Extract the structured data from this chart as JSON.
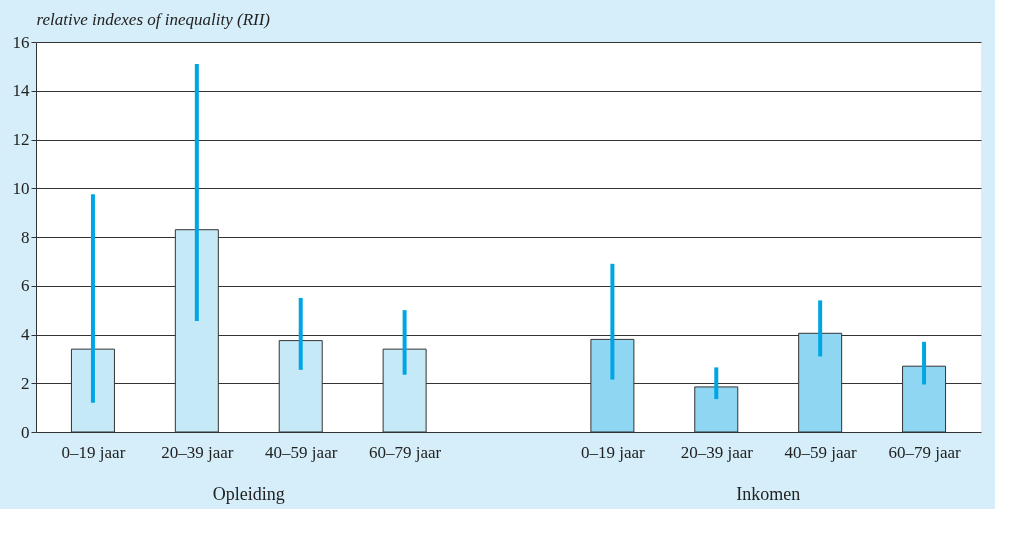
{
  "chart_data": {
    "type": "bar",
    "ylabel": "relative indexes of inequality (RII)",
    "categories": [
      "0–19 jaar",
      "20–39 jaar",
      "40–59 jaar",
      "60–79 jaar",
      null,
      "0–19 jaar",
      "20–39 jaar",
      "40–59 jaar",
      "60–79 jaar"
    ],
    "values": [
      3.4,
      8.3,
      3.75,
      3.4,
      null,
      3.8,
      1.85,
      4.05,
      2.7
    ],
    "colors": [
      "#c6e9f7",
      "#c6e9f7",
      "#c6e9f7",
      "#c6e9f7",
      null,
      "#8fd6f3",
      "#8fd6f3",
      "#8fd6f3",
      "#8fd6f3"
    ],
    "errors": [
      [
        1.2,
        9.75
      ],
      [
        4.55,
        15.1
      ],
      [
        2.55,
        5.5
      ],
      [
        2.35,
        5.0
      ],
      null,
      [
        2.15,
        6.9
      ],
      [
        1.35,
        2.65
      ],
      [
        3.1,
        5.4
      ],
      [
        1.95,
        3.7
      ]
    ],
    "ylim": [
      0,
      16
    ],
    "yticks": [
      0,
      2,
      4,
      6,
      8,
      10,
      12,
      14,
      16
    ],
    "grid": "y",
    "annotations": [
      "Opleiding",
      "Inkomen"
    ]
  }
}
